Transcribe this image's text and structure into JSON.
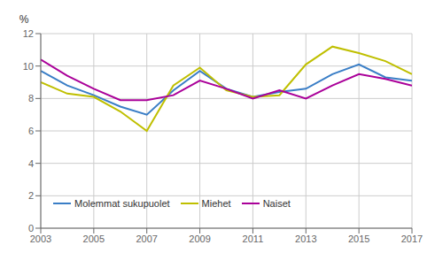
{
  "chart_data": {
    "type": "line",
    "ylabel": "%",
    "x": [
      2003,
      2004,
      2005,
      2006,
      2007,
      2008,
      2009,
      2010,
      2011,
      2012,
      2013,
      2014,
      2015,
      2016,
      2017
    ],
    "series": [
      {
        "name": "Molemmat sukupuolet",
        "color": "#3A7EC6",
        "values": [
          9.7,
          8.8,
          8.2,
          7.5,
          7.0,
          8.5,
          9.7,
          8.6,
          8.1,
          8.4,
          8.6,
          9.5,
          10.1,
          9.3,
          9.1
        ]
      },
      {
        "name": "Miehet",
        "color": "#BFBF00",
        "values": [
          9.0,
          8.3,
          8.1,
          7.2,
          6.0,
          8.8,
          9.9,
          8.5,
          8.1,
          8.2,
          10.1,
          11.2,
          10.8,
          10.3,
          9.5
        ]
      },
      {
        "name": "Naiset",
        "color": "#AA0099",
        "values": [
          10.4,
          9.4,
          8.6,
          7.9,
          7.9,
          8.2,
          9.1,
          8.6,
          8.0,
          8.5,
          8.0,
          8.8,
          9.5,
          9.2,
          8.8
        ]
      }
    ],
    "xlim": [
      2003,
      2017
    ],
    "xticks": [
      2003,
      2005,
      2007,
      2009,
      2011,
      2013,
      2015,
      2017
    ],
    "ylim": [
      0,
      12
    ],
    "yticks": [
      0,
      2,
      4,
      6,
      8,
      10,
      12
    ],
    "grid": true,
    "legend": "lower left"
  }
}
